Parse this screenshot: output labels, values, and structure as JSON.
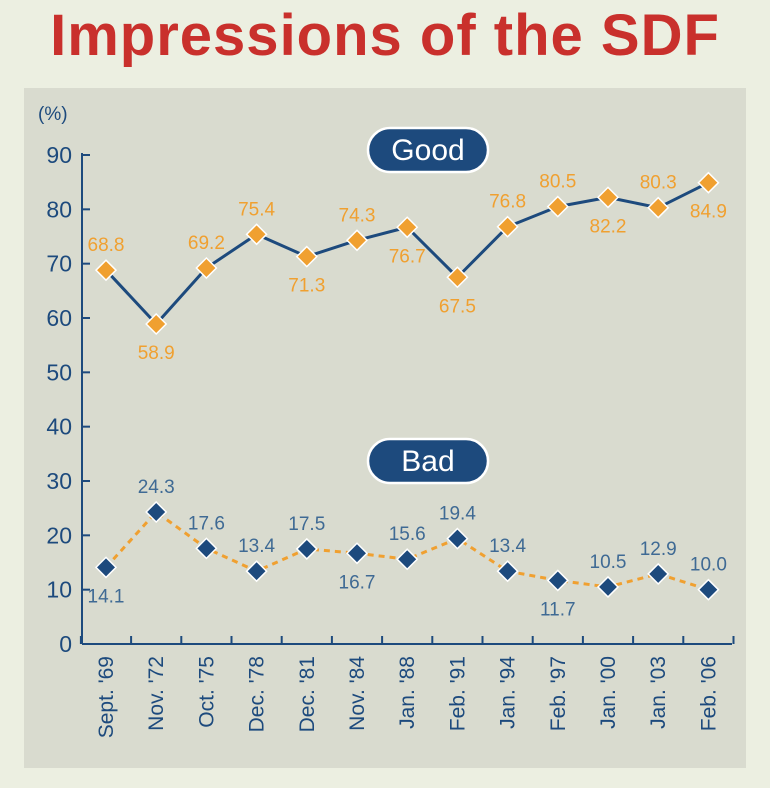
{
  "title": "Impressions of the SDF",
  "colors": {
    "background": "#ecefe1",
    "panel": "#d9dbcf",
    "title": "#c9302c",
    "navy": "#1d4a7d",
    "orange": "#f0a030",
    "good_label_text": "#f0a030",
    "bad_label_text": "#3f6a94"
  },
  "chart_data": {
    "type": "line",
    "title": "Impressions of the SDF",
    "ylabel": "(%)",
    "xlabel": "",
    "ylim": [
      0,
      90
    ],
    "yticks": [
      0,
      10,
      20,
      30,
      40,
      50,
      60,
      70,
      80,
      90
    ],
    "categories": [
      "Sept. '69",
      "Nov. '72",
      "Oct. '75",
      "Dec. '78",
      "Dec. '81",
      "Nov. '84",
      "Jan. '88",
      "Feb. '91",
      "Jan. '94",
      "Feb. '97",
      "Jan. '00",
      "Jan. '03",
      "Feb. '06"
    ],
    "series": [
      {
        "name": "Good",
        "values": [
          68.8,
          58.9,
          69.2,
          75.4,
          71.3,
          74.3,
          76.7,
          67.5,
          76.8,
          80.5,
          82.2,
          80.3,
          84.9
        ],
        "labels": [
          "68.8",
          "58.9",
          "69.2",
          "75.4",
          "71.3",
          "74.3",
          "76.7",
          "67.5",
          "76.8",
          "80.5",
          "82.2",
          "80.3",
          "84.9"
        ],
        "label_position": [
          "above",
          "below",
          "above",
          "above",
          "below",
          "above",
          "below",
          "below",
          "above",
          "above",
          "below",
          "above",
          "below"
        ],
        "line_style": "solid",
        "line_color": "#1d4a7d",
        "marker_color": "#f0a030"
      },
      {
        "name": "Bad",
        "values": [
          14.1,
          24.3,
          17.6,
          13.4,
          17.5,
          16.7,
          15.6,
          19.4,
          13.4,
          11.7,
          10.5,
          12.9,
          10.0
        ],
        "labels": [
          "14.1",
          "24.3",
          "17.6",
          "13.4",
          "17.5",
          "16.7",
          "15.6",
          "19.4",
          "13.4",
          "11.7",
          "10.5",
          "12.9",
          "10.0"
        ],
        "label_position": [
          "below",
          "above",
          "above",
          "above",
          "above",
          "below",
          "above",
          "above",
          "above",
          "below",
          "above",
          "above",
          "above"
        ],
        "line_style": "dashed",
        "line_color": "#f0a030",
        "marker_color": "#1d4a7d"
      }
    ],
    "legend": [
      "Good",
      "Bad"
    ],
    "grid": false
  }
}
